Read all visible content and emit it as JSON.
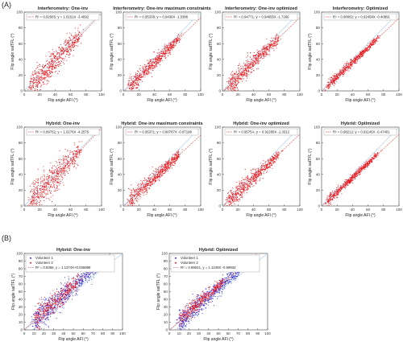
{
  "labels": {
    "panel_a": "(A)",
    "panel_b": "(B)"
  },
  "colors": {
    "red": "#e8141b",
    "blue": "#2a2ad8",
    "identity": "#9ec8e8",
    "fit": "#d9534f"
  },
  "chart_data": [
    {
      "type": "scatter",
      "title": "Interferometry: One-inv",
      "xlabel": "Flip angle AFI (°)",
      "ylabel": "Flip angle satTFL (°)",
      "xlim": [
        0,
        100
      ],
      "ylim": [
        0,
        100
      ],
      "xticks": [
        "0",
        "20",
        "40",
        "60",
        "80",
        "100"
      ],
      "yticks": [
        "0",
        "20",
        "40",
        "60",
        "80",
        "100"
      ],
      "grid": false,
      "legend": "R² = 0.92565; y = 1.0151X -3.4692",
      "fit": {
        "r2": 0.92565,
        "slope": 1.0151,
        "intercept": -3.4692
      }
    },
    {
      "type": "scatter",
      "title": "Interferometry: One-inv maximum constraints",
      "xlabel": "Flip angle AFI (°)",
      "ylabel": "Flip angle satTFL (°)",
      "xlim": [
        0,
        100
      ],
      "ylim": [
        0,
        100
      ],
      "xticks": [
        "0",
        "20",
        "40",
        "60",
        "80",
        "100"
      ],
      "yticks": [
        "0",
        "20",
        "40",
        "60",
        "80",
        "100"
      ],
      "grid": false,
      "legend": "R² = 0.95338; y = 0.9436X -1.5386",
      "fit": {
        "r2": 0.95338,
        "slope": 0.9436,
        "intercept": -1.5386
      }
    },
    {
      "type": "scatter",
      "title": "Interferometry: One-inv optimized",
      "xlabel": "Flip angle AFI (°)",
      "ylabel": "Flip angle satTFL (°)",
      "xlim": [
        0,
        100
      ],
      "ylim": [
        0,
        100
      ],
      "xticks": [
        "0",
        "20",
        "40",
        "60",
        "80",
        "100"
      ],
      "yticks": [
        "0",
        "20",
        "40",
        "60",
        "80",
        "100"
      ],
      "grid": false,
      "legend": "R² = 0.94771; y = 0.94655X -1.7266",
      "fit": {
        "r2": 0.94771,
        "slope": 0.94655,
        "intercept": -1.7266
      }
    },
    {
      "type": "scatter",
      "title": "Interferometry: Optimized",
      "xlabel": "Flip angle AFI (°)",
      "ylabel": "Flip angle satTFL (°)",
      "xlim": [
        0,
        100
      ],
      "ylim": [
        0,
        100
      ],
      "xticks": [
        "0",
        "20",
        "40",
        "60",
        "80",
        "100"
      ],
      "yticks": [
        "0",
        "20",
        "40",
        "60",
        "80",
        "100"
      ],
      "grid": false,
      "legend": "R² = 0.98082; y = 0.92458X -0.40891",
      "fit": {
        "r2": 0.98082,
        "slope": 0.92458,
        "intercept": -0.40891
      }
    },
    {
      "type": "scatter",
      "title": "Hybrid: One-inv",
      "xlabel": "Flip angle AFI (°)",
      "ylabel": "Flip angle satTFL (°)",
      "xlim": [
        0,
        100
      ],
      "ylim": [
        0,
        100
      ],
      "xticks": [
        "0",
        "20",
        "40",
        "60",
        "80",
        "100"
      ],
      "yticks": [
        "0",
        "20",
        "40",
        "60",
        "80",
        "100"
      ],
      "grid": false,
      "legend": "R² = 0.89752; y = 1.0276X -4.2575",
      "fit": {
        "r2": 0.89752,
        "slope": 1.0276,
        "intercept": -4.2575
      }
    },
    {
      "type": "scatter",
      "title": "Hybrid: One-inv maximum constraints",
      "xlabel": "Flip angle AFI (°)",
      "ylabel": "Flip angle satTFL (°)",
      "xlim": [
        0,
        100
      ],
      "ylim": [
        0,
        100
      ],
      "xticks": [
        "0",
        "20",
        "40",
        "60",
        "80",
        "100"
      ],
      "yticks": [
        "0",
        "20",
        "40",
        "60",
        "80",
        "100"
      ],
      "grid": false,
      "legend": "R² = 0.95371; y = 0.90787X -0.87198",
      "fit": {
        "r2": 0.95371,
        "slope": 0.90787,
        "intercept": -0.87198
      }
    },
    {
      "type": "scatter",
      "title": "Hybrid: One-inv optimized",
      "xlabel": "Flip angle AFI (°)",
      "ylabel": "Flip angle satTFL (°)",
      "xlim": [
        0,
        100
      ],
      "ylim": [
        0,
        100
      ],
      "xticks": [
        "0",
        "20",
        "40",
        "60",
        "80",
        "100"
      ],
      "yticks": [
        "0",
        "20",
        "40",
        "60",
        "80",
        "100"
      ],
      "grid": false,
      "legend": "R² = 0.9575A; y = 0.92285X -1.3312",
      "fit": {
        "r2": 0.9575,
        "slope": 0.92285,
        "intercept": -1.3312
      }
    },
    {
      "type": "scatter",
      "title": "Hybrid: Optimized",
      "xlabel": "Flip angle AFI (°)",
      "ylabel": "Flip angle satTFL (°)",
      "xlim": [
        0,
        100
      ],
      "ylim": [
        0,
        100
      ],
      "xticks": [
        "0",
        "20",
        "40",
        "60",
        "80",
        "100"
      ],
      "yticks": [
        "0",
        "20",
        "40",
        "60",
        "80",
        "100"
      ],
      "grid": false,
      "legend": "R² = 0.98212; y = 0.91145X -0.47401",
      "fit": {
        "r2": 0.98212,
        "slope": 0.91145,
        "intercept": -0.47401
      }
    },
    {
      "type": "scatter",
      "title": "Hybrid: One-inv",
      "xlabel": "Flip angle AFI (°)",
      "ylabel": "Flip angle satTFL (°)",
      "xlim": [
        0,
        100
      ],
      "ylim": [
        0,
        100
      ],
      "xticks": [
        "0",
        "10",
        "20",
        "30",
        "40",
        "50",
        "60",
        "70",
        "80",
        "90",
        "100"
      ],
      "yticks": [
        "0",
        "10",
        "20",
        "30",
        "40",
        "50",
        "60",
        "70",
        "80",
        "90",
        "100"
      ],
      "grid": false,
      "legend_position": "top-left",
      "series": [
        {
          "name": "Volunteer 1"
        },
        {
          "name": "Volunteer 2"
        }
      ],
      "fit_text": "R² = 0.8366, y = 1.1374X+0.036998",
      "fit": {
        "r2": 0.8366,
        "slope": 1.1374,
        "intercept": 0.036998
      }
    },
    {
      "type": "scatter",
      "title": "Hybrid: Optimized",
      "xlabel": "Flip angle AFI (°)",
      "ylabel": "Flip angle satTFL (°)",
      "xlim": [
        0,
        100
      ],
      "ylim": [
        0,
        100
      ],
      "xticks": [
        "0",
        "10",
        "20",
        "30",
        "40",
        "50",
        "60",
        "70",
        "80",
        "90",
        "100"
      ],
      "yticks": [
        "0",
        "10",
        "20",
        "30",
        "40",
        "50",
        "60",
        "70",
        "80",
        "90",
        "100"
      ],
      "grid": false,
      "legend_position": "top-left",
      "series": [
        {
          "name": "Volunteer 1"
        },
        {
          "name": "Volunteer 2"
        }
      ],
      "fit_text": "R² = 0.89041, y = 1.1249X -0.59934",
      "fit": {
        "r2": 0.89041,
        "slope": 1.1249,
        "intercept": -0.59934
      }
    }
  ]
}
